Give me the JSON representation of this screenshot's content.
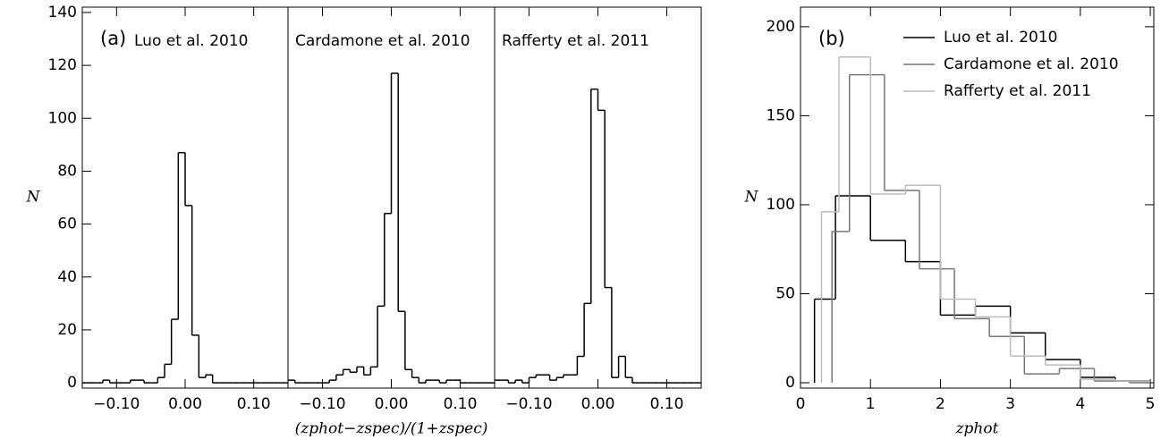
{
  "chart_data": [
    {
      "type": "histogram",
      "annotation": "(a)",
      "ylabel": "N",
      "xlim": [
        -0.15,
        0.15
      ],
      "ylim": [
        -2,
        142
      ],
      "xticks": [
        {
          "value": -0.1,
          "label": "−0.10"
        },
        {
          "value": 0,
          "label": "0.00"
        },
        {
          "value": 0.1,
          "label": "0.10"
        }
      ],
      "yticks": [
        0,
        20,
        40,
        60,
        80,
        100,
        120,
        140
      ],
      "bins": [
        -0.15,
        -0.14,
        -0.13,
        -0.12,
        -0.11,
        -0.1,
        -0.09,
        -0.08,
        -0.07,
        -0.06,
        -0.05,
        -0.04,
        -0.03,
        -0.02,
        -0.01,
        0,
        0.01,
        0.02,
        0.03,
        0.04,
        0.05,
        0.06,
        0.07,
        0.08,
        0.09,
        0.1,
        0.11,
        0.12,
        0.13,
        0.14,
        0.15
      ],
      "series": [
        {
          "name": "Luo et al. 2010",
          "color": "#000000",
          "values": [
            0,
            0,
            0,
            1,
            0,
            0,
            0,
            1,
            1,
            0,
            0,
            2,
            7,
            24,
            87,
            67,
            18,
            2,
            3,
            0,
            0,
            0,
            0,
            0,
            0,
            0,
            0,
            0,
            0,
            0
          ]
        }
      ]
    },
    {
      "type": "histogram",
      "xlabel": "(zphot−zspec)/(1+zspec)",
      "xlim": [
        -0.15,
        0.15
      ],
      "ylim": [
        -2,
        142
      ],
      "xticks": [
        {
          "value": -0.1,
          "label": "−0.10"
        },
        {
          "value": 0,
          "label": "0.00"
        },
        {
          "value": 0.1,
          "label": "0.10"
        }
      ],
      "bins": [
        -0.15,
        -0.14,
        -0.13,
        -0.12,
        -0.11,
        -0.1,
        -0.09,
        -0.08,
        -0.07,
        -0.06,
        -0.05,
        -0.04,
        -0.03,
        -0.02,
        -0.01,
        0,
        0.01,
        0.02,
        0.03,
        0.04,
        0.05,
        0.06,
        0.07,
        0.08,
        0.09,
        0.1,
        0.11,
        0.12,
        0.13,
        0.14,
        0.15
      ],
      "series": [
        {
          "name": "Cardamone et al. 2010",
          "color": "#000000",
          "values": [
            1,
            0,
            0,
            0,
            0,
            0,
            1,
            3,
            5,
            4,
            6,
            3,
            6,
            29,
            64,
            117,
            27,
            5,
            2,
            0,
            1,
            1,
            0,
            1,
            1,
            0,
            0,
            0,
            0,
            0
          ]
        }
      ]
    },
    {
      "type": "histogram",
      "xlim": [
        -0.15,
        0.15
      ],
      "ylim": [
        -2,
        142
      ],
      "xticks": [
        {
          "value": -0.1,
          "label": "−0.10"
        },
        {
          "value": 0,
          "label": "0.00"
        },
        {
          "value": 0.1,
          "label": "0.10"
        }
      ],
      "bins": [
        -0.15,
        -0.14,
        -0.13,
        -0.12,
        -0.11,
        -0.1,
        -0.09,
        -0.08,
        -0.07,
        -0.06,
        -0.05,
        -0.04,
        -0.03,
        -0.02,
        -0.01,
        0,
        0.01,
        0.02,
        0.03,
        0.04,
        0.05,
        0.06,
        0.07,
        0.08,
        0.09,
        0.1,
        0.11,
        0.12,
        0.13,
        0.14,
        0.15
      ],
      "series": [
        {
          "name": "Rafferty et al. 2011",
          "color": "#000000",
          "values": [
            1,
            1,
            0,
            1,
            0,
            2,
            3,
            3,
            1,
            2,
            3,
            3,
            10,
            30,
            111,
            103,
            36,
            2,
            10,
            2,
            0,
            0,
            0,
            0,
            0,
            0,
            0,
            0,
            0,
            0
          ]
        }
      ]
    },
    {
      "type": "step-histogram",
      "annotation": "(b)",
      "ylabel": "N",
      "xlabel": "zphot",
      "legend": "top",
      "xlim": [
        0,
        5.05
      ],
      "ylim": [
        -3,
        211
      ],
      "xticks": [
        0,
        1,
        2,
        3,
        4,
        5
      ],
      "yticks": [
        0,
        50,
        100,
        150,
        200
      ],
      "series": [
        {
          "name": "Luo et al. 2010",
          "color": "#000000",
          "bins": [
            0.2,
            0.5,
            1,
            1.5,
            2,
            2.5,
            3,
            3.5,
            4,
            4.5,
            5
          ],
          "values": [
            47,
            105,
            80,
            68,
            38,
            43,
            28,
            13,
            3,
            1
          ]
        },
        {
          "name": "Cardamone et al. 2010",
          "color": "#777777",
          "bins": [
            0.45,
            0.7,
            1.2,
            1.7,
            2.2,
            2.7,
            3.2,
            3.7,
            4.2,
            4.7,
            5
          ],
          "values": [
            85,
            173,
            108,
            64,
            36,
            26,
            5,
            8,
            1,
            0
          ]
        },
        {
          "name": "Rafferty et al. 2011",
          "color": "#bbbbbb",
          "bins": [
            0.3,
            0.55,
            1,
            1.5,
            2,
            2.5,
            3,
            3.5,
            4,
            4.5,
            5
          ],
          "values": [
            96,
            183,
            106,
            111,
            47,
            37,
            15,
            10,
            2,
            1
          ]
        }
      ]
    }
  ]
}
